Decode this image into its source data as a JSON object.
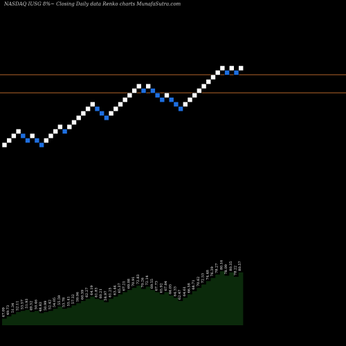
{
  "header": {
    "title": "NASDAQ IUSG 8%~  Closing Daily data  Renko  charts MunafaSutra.com"
  },
  "colors": {
    "background": "#000000",
    "up_brick": "#ffffff",
    "down_brick": "#1e6fe0",
    "reference_line": "#b5652a",
    "volume_fill": "#0b2a0b"
  },
  "chart_data": {
    "type": "renko",
    "title": "NASDAQ IUSG 8%~  Closing Daily data  Renko  charts MunafaSutra.com",
    "brick_levels": [
      0,
      1,
      2,
      3,
      2,
      1,
      2,
      1,
      0,
      1,
      2,
      3,
      4,
      3,
      4,
      5,
      6,
      7,
      8,
      9,
      8,
      7,
      6,
      7,
      8,
      9,
      10,
      11,
      12,
      13,
      12,
      13,
      12,
      11,
      10,
      11,
      10,
      9,
      8,
      9,
      10,
      11,
      12,
      13,
      14,
      15,
      16,
      17,
      16,
      17,
      16,
      17
    ],
    "brick_directions": [
      "up",
      "up",
      "up",
      "up",
      "down",
      "down",
      "up",
      "down",
      "down",
      "up",
      "up",
      "up",
      "up",
      "down",
      "up",
      "up",
      "up",
      "up",
      "up",
      "up",
      "down",
      "down",
      "down",
      "up",
      "up",
      "up",
      "up",
      "up",
      "up",
      "up",
      "down",
      "up",
      "down",
      "down",
      "down",
      "up",
      "down",
      "down",
      "down",
      "up",
      "up",
      "up",
      "up",
      "up",
      "up",
      "up",
      "up",
      "up",
      "down",
      "up",
      "down",
      "up"
    ],
    "reference_lines": [
      {
        "level": 16
      },
      {
        "level": 12
      }
    ],
    "volume": {
      "values": [
        6,
        8,
        10,
        12,
        13,
        14,
        12,
        13,
        11,
        12,
        13,
        15,
        17,
        15,
        16,
        18,
        20,
        22,
        24,
        26,
        24,
        23,
        21,
        24,
        26,
        28,
        30,
        32,
        34,
        36,
        33,
        35,
        32,
        30,
        28,
        30,
        27,
        25,
        22,
        25,
        28,
        31,
        34,
        37,
        40,
        43,
        46,
        49,
        45,
        48,
        44,
        48
      ],
      "labels": [
        "47.09",
        "49.73",
        "51.34",
        "52.11",
        "53.57",
        "51.93",
        "49.52",
        "50.46",
        "48.83",
        "50.99",
        "52.42",
        "54.05",
        "55.59",
        "53.78",
        "55.41",
        "57.32",
        "59.06",
        "60.59",
        "62.27",
        "64.19",
        "61.83",
        "60.21",
        "58.97",
        "61.25",
        "63.44",
        "65.37",
        "67.21",
        "69.08",
        "70.91",
        "72.83",
        "70.26",
        "72.14",
        "69.55",
        "67.73",
        "65.92",
        "67.84",
        "66.05",
        "64.33",
        "62.47",
        "64.61",
        "66.58",
        "68.71",
        "70.62",
        "72.53",
        "74.48",
        "76.39",
        "78.27",
        "80.16",
        "78.09",
        "80.35",
        "78.22",
        "80.57"
      ]
    }
  }
}
